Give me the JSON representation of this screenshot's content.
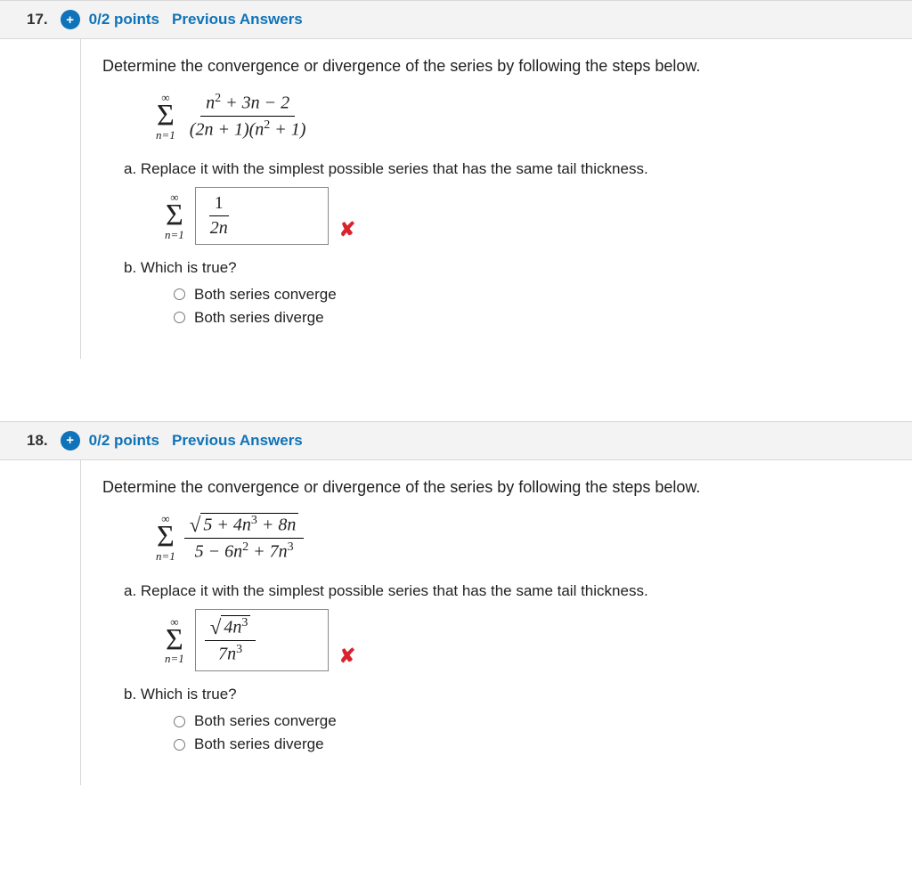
{
  "q17": {
    "number": "17.",
    "points": "0/2 points",
    "prev_link": "Previous Answers",
    "prompt": "Determine the convergence or divergence of the series by following the steps below.",
    "sigma_top": "∞",
    "sigma_bot": "n=1",
    "frac_num": "n² + 3n − 2",
    "frac_den": "(2n + 1)(n² + 1)",
    "part_a": "a. Replace it with the simplest possible series that has the same tail thickness.",
    "ans_num": "1",
    "ans_den": "2n",
    "part_b": "b. Which is true?",
    "opt1": "Both series converge",
    "opt2": "Both series diverge"
  },
  "q18": {
    "number": "18.",
    "points": "0/2 points",
    "prev_link": "Previous Answers",
    "prompt": "Determine the convergence or divergence of the series by following the steps below.",
    "sigma_top": "∞",
    "sigma_bot": "n=1",
    "sqrt_radicand": "5 + 4n³ + 8n",
    "frac_den": "5 − 6n² + 7n³",
    "part_a": "a. Replace it with the simplest possible series that has the same tail thickness.",
    "ans_sqrt": "4n³",
    "ans_den": "7n³",
    "part_b": "b. Which is true?",
    "opt1": "Both series converge",
    "opt2": "Both series diverge"
  },
  "icons": {
    "wrong": "✘",
    "plus": "+"
  }
}
